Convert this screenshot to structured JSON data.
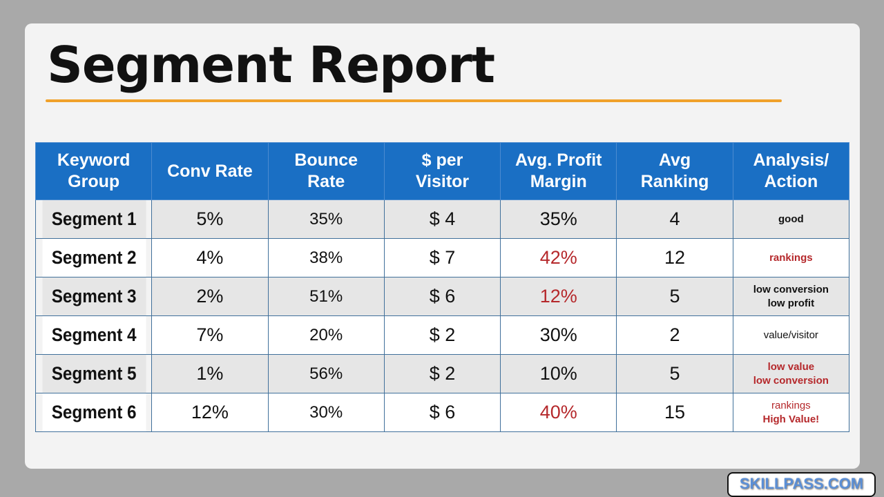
{
  "title": "Segment Report",
  "colors": {
    "header": "#1a6fc4",
    "accent_rule": "#f0a12a",
    "warning_text": "#b5282b"
  },
  "table": {
    "headers": [
      "Keyword\nGroup",
      "Conv Rate",
      "Bounce\nRate",
      "$ per\nVisitor",
      "Avg. Profit\nMargin",
      "Avg\nRanking",
      "Analysis/\nAction"
    ],
    "rows": [
      {
        "segment": "Segment 1",
        "conv": "5%",
        "bounce": "35%",
        "per_visitor": "$ 4",
        "margin": "35%",
        "margin_red": false,
        "ranking": "4",
        "analysis": [
          "good"
        ],
        "style": "b",
        "red": false
      },
      {
        "segment": "Segment 2",
        "conv": "4%",
        "bounce": "38%",
        "per_visitor": "$ 7",
        "margin": "42%",
        "margin_red": true,
        "ranking": "12",
        "analysis": [
          "rankings"
        ],
        "style": "b",
        "red": true
      },
      {
        "segment": "Segment 3",
        "conv": "2%",
        "bounce": "51%",
        "per_visitor": "$ 6",
        "margin": "12%",
        "margin_red": true,
        "ranking": "5",
        "analysis": [
          "low conversion",
          "low profit"
        ],
        "style": "b",
        "red": false
      },
      {
        "segment": "Segment 4",
        "conv": "7%",
        "bounce": "20%",
        "per_visitor": "$ 2",
        "margin": "30%",
        "margin_red": false,
        "ranking": "2",
        "analysis": [
          "value/visitor"
        ],
        "style": "",
        "red": false
      },
      {
        "segment": "Segment 5",
        "conv": "1%",
        "bounce": "56%",
        "per_visitor": "$ 2",
        "margin": "10%",
        "margin_red": false,
        "ranking": "5",
        "analysis": [
          "low value",
          "low conversion"
        ],
        "style": "b sm",
        "red": true
      },
      {
        "segment": "Segment 6",
        "conv": "12%",
        "bounce": "30%",
        "per_visitor": "$ 6",
        "margin": "40%",
        "margin_red": true,
        "ranking": "15",
        "analysis": [
          "rankings",
          "High Value!"
        ],
        "style": "sm mixed",
        "red": true
      }
    ]
  },
  "logo": "SKILLPASS.COM"
}
